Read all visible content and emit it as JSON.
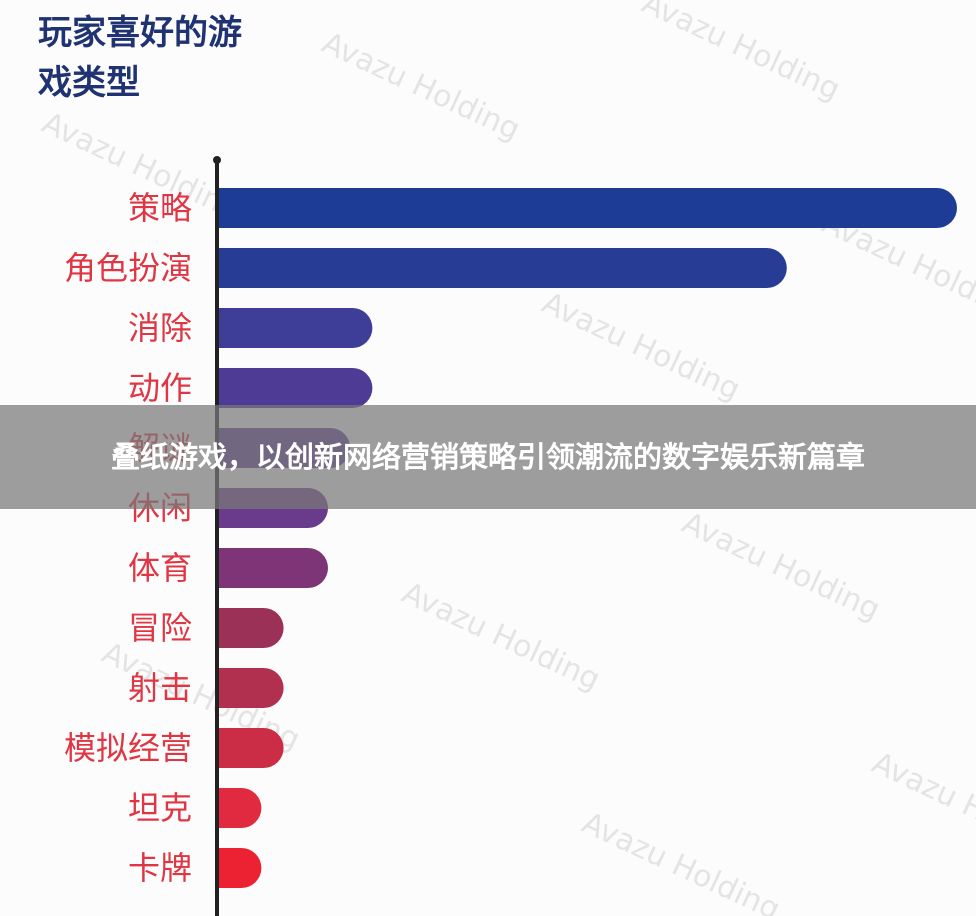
{
  "banner": {
    "text": "叠纸游戏，以创新网络营销策略引领潮流的数字娱乐新篇章"
  },
  "watermark": {
    "text": "Avazu Holding"
  },
  "chart_data": {
    "type": "bar",
    "orientation": "horizontal",
    "title": "玩家喜好的游戏类型",
    "xlabel": "",
    "ylabel": "",
    "categories": [
      "策略",
      "角色扮演",
      "消除",
      "动作",
      "解谜",
      "休闲",
      "体育",
      "冒险",
      "射击",
      "模拟经营",
      "坦克",
      "卡牌"
    ],
    "values": [
      100,
      77,
      21,
      21,
      18,
      15,
      15,
      9,
      9,
      9,
      6,
      6
    ],
    "xlim": [
      0,
      100
    ],
    "grid": false,
    "legend": "none",
    "bar_colors": [
      "#1d3c95",
      "#263c95",
      "#3e3d98",
      "#4d3b96",
      "#5d3a93",
      "#6a3a8c",
      "#7e3577",
      "#9b3156",
      "#b12f4f",
      "#cb2d46",
      "#e1293f",
      "#ec2233"
    ]
  }
}
